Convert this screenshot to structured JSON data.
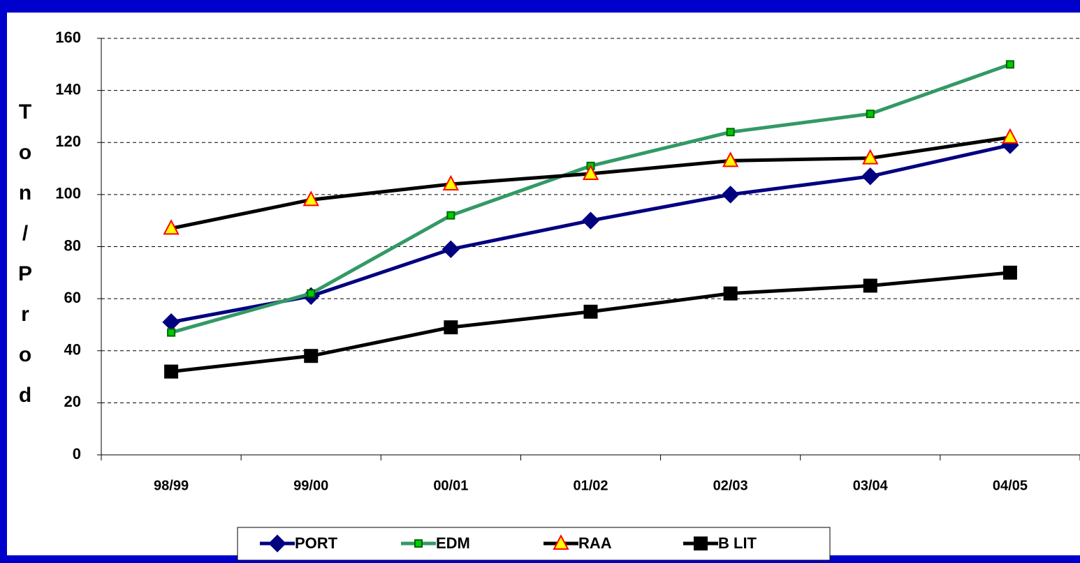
{
  "chart_data": {
    "type": "line",
    "y_label": "Ton/Prod",
    "categories": [
      "98/99",
      "99/00",
      "00/01",
      "01/02",
      "02/03",
      "03/04",
      "04/05"
    ],
    "series": [
      {
        "name": "PORT",
        "color": "#000080",
        "marker": "diamond",
        "marker_fill": "#000080",
        "marker_edge": "#000080",
        "values": [
          51,
          61,
          79,
          90,
          100,
          107,
          119
        ]
      },
      {
        "name": "EDM",
        "color": "#339966",
        "marker": "square-small",
        "marker_fill": "#00cc00",
        "marker_edge": "#006600",
        "values": [
          47,
          62,
          92,
          111,
          124,
          131,
          150
        ]
      },
      {
        "name": "RAA",
        "color": "#000000",
        "marker": "triangle",
        "marker_fill": "#ffff00",
        "marker_edge": "#ff0000",
        "values": [
          87,
          98,
          104,
          108,
          113,
          114,
          122
        ]
      },
      {
        "name": "B LIT",
        "color": "#000000",
        "marker": "square",
        "marker_fill": "#000000",
        "marker_edge": "#000000",
        "values": [
          32,
          38,
          49,
          55,
          62,
          65,
          70
        ]
      }
    ],
    "ylim": [
      0,
      160
    ],
    "yticks": [
      0,
      20,
      40,
      60,
      80,
      100,
      120,
      140,
      160
    ],
    "grid": true,
    "legend": "bottom"
  }
}
